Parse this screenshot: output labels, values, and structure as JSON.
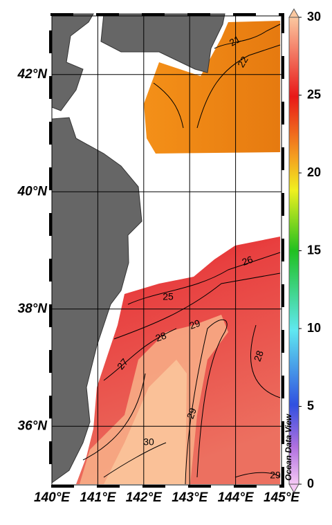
{
  "map": {
    "xlim": [
      140,
      145
    ],
    "ylim": [
      35,
      43
    ],
    "xticks": [
      {
        "value": 140,
        "label": "140°E"
      },
      {
        "value": 141,
        "label": "141°E"
      },
      {
        "value": 142,
        "label": "142°E"
      },
      {
        "value": 143,
        "label": "143°E"
      },
      {
        "value": 144,
        "label": "144°E"
      },
      {
        "value": 145,
        "label": "145°E"
      }
    ],
    "yticks": [
      {
        "value": 36,
        "label": "36°N"
      },
      {
        "value": 38,
        "label": "38°N"
      },
      {
        "value": 40,
        "label": "40°N"
      },
      {
        "value": 42,
        "label": "42°N"
      }
    ],
    "contour_labels": [
      21,
      22,
      25,
      26,
      28,
      29,
      27,
      28,
      29,
      30,
      29
    ]
  },
  "colorbar": {
    "lim": [
      0,
      30
    ],
    "ticks": [
      0,
      5,
      10,
      15,
      20,
      25,
      30
    ]
  },
  "watermark": "Ocean Data View"
}
